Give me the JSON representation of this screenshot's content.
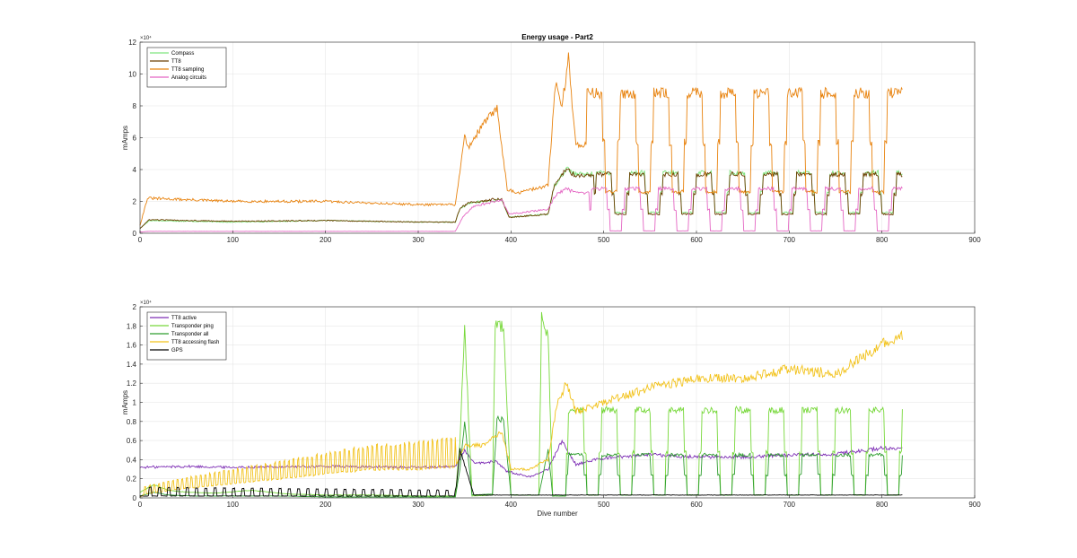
{
  "chart_data": [
    {
      "type": "line",
      "title": "Energy usage - Part2",
      "xlabel": "",
      "ylabel": "mAmps",
      "exponent_label": "×10⁴",
      "xlim": [
        0,
        900
      ],
      "ylim": [
        0,
        120000
      ],
      "xticks": [
        0,
        100,
        200,
        300,
        400,
        500,
        600,
        700,
        800,
        900
      ],
      "yticks": [
        0,
        20000,
        40000,
        60000,
        80000,
        100000,
        120000
      ],
      "ytick_labels": [
        "0",
        "2",
        "4",
        "6",
        "8",
        "10",
        "12"
      ],
      "grid": true,
      "legend_position": "top-left",
      "series": [
        {
          "name": "Compass",
          "color": "#7fe57f",
          "style": "pulse",
          "x": [
            0,
            10,
            100,
            200,
            300,
            340,
            345,
            355,
            390,
            398,
            440,
            447,
            460,
            470,
            822
          ],
          "y": [
            3000,
            8000,
            7000,
            8000,
            7000,
            7000,
            15000,
            19000,
            21000,
            10000,
            12000,
            30000,
            41000,
            37000,
            40000
          ],
          "cycle_start": 490,
          "period": 36,
          "high": 38000,
          "low": 13000,
          "end": 822
        },
        {
          "name": "TT8",
          "color": "#6b3d00",
          "style": "pulse",
          "x": [
            0,
            10,
            100,
            200,
            300,
            340,
            345,
            355,
            390,
            398,
            440,
            447,
            460,
            470,
            822
          ],
          "y": [
            3000,
            8500,
            7500,
            8000,
            7000,
            7000,
            16000,
            19000,
            22000,
            10000,
            12000,
            31000,
            40000,
            36000,
            39000
          ],
          "cycle_start": 490,
          "period": 36,
          "high": 37000,
          "low": 12000,
          "end": 822
        },
        {
          "name": "TT8 sampling",
          "color": "#e8830f",
          "style": "pulse",
          "x": [
            0,
            8,
            100,
            200,
            300,
            340,
            350,
            355,
            372,
            385,
            396,
            405,
            440,
            448,
            455,
            462,
            470,
            822
          ],
          "y": [
            5000,
            22000,
            20000,
            20000,
            18000,
            18000,
            60000,
            55000,
            70000,
            78000,
            28000,
            25000,
            30000,
            95000,
            80000,
            110000,
            55000,
            100000
          ],
          "cycle_start": 480,
          "period": 36,
          "high": 88000,
          "low": 26000,
          "end": 822
        },
        {
          "name": "Analog circuits",
          "color": "#e466c3",
          "style": "pulse",
          "x": [
            0,
            10,
            340,
            348,
            360,
            390,
            398,
            440,
            448,
            460,
            470,
            822
          ],
          "y": [
            800,
            1200,
            1200,
            10000,
            17000,
            21000,
            12000,
            15000,
            24000,
            28000,
            25000,
            28000
          ],
          "cycle_start": 485,
          "period": 36,
          "high": 28000,
          "low": 1500,
          "end": 822
        }
      ]
    },
    {
      "type": "line",
      "title": "",
      "xlabel": "Dive number",
      "ylabel": "mAmps",
      "exponent_label": "×10⁴",
      "xlim": [
        0,
        900
      ],
      "ylim": [
        0,
        20000
      ],
      "xticks": [
        0,
        100,
        200,
        300,
        400,
        500,
        600,
        700,
        800,
        900
      ],
      "yticks": [
        0,
        2000,
        4000,
        6000,
        8000,
        10000,
        12000,
        14000,
        16000,
        18000,
        20000
      ],
      "ytick_labels": [
        "0",
        "0.2",
        "0.4",
        "0.6",
        "0.8",
        "1",
        "1.2",
        "1.4",
        "1.6",
        "1.8",
        "2"
      ],
      "grid": true,
      "legend_position": "top-left",
      "series": [
        {
          "name": "TT8 active",
          "color": "#7e2fb5",
          "x": [
            0,
            50,
            100,
            200,
            300,
            340,
            350,
            360,
            385,
            395,
            420,
            440,
            455,
            470,
            500,
            550,
            600,
            650,
            700,
            750,
            800,
            822
          ],
          "y": [
            3200,
            3300,
            3200,
            3300,
            3200,
            3300,
            5000,
            3600,
            3800,
            2800,
            2200,
            3000,
            6000,
            3500,
            4200,
            4500,
            4300,
            4300,
            4500,
            4600,
            5200,
            5100
          ]
        },
        {
          "name": "Transponder ping",
          "color": "#77d83a",
          "x": [
            0,
            15,
            30,
            50,
            80,
            120,
            160,
            200,
            250,
            300,
            340,
            345,
            350,
            358,
            380,
            383,
            392,
            400,
            430,
            433,
            440,
            445
          ],
          "y": [
            600,
            1400,
            800,
            600,
            500,
            800,
            400,
            300,
            300,
            200,
            200,
            6000,
            18000,
            200,
            300,
            18000,
            18000,
            300,
            300,
            19000,
            17000,
            200
          ],
          "cycle_start": 460,
          "period": 36,
          "high": 9200,
          "low": 300,
          "end": 822
        },
        {
          "name": "Transponder all",
          "color": "#2f9e2f",
          "x": [
            0,
            15,
            30,
            60,
            100,
            150,
            200,
            300,
            340,
            345,
            350,
            358,
            380,
            385,
            392,
            400,
            430,
            440,
            445
          ],
          "y": [
            200,
            600,
            300,
            200,
            200,
            200,
            100,
            100,
            100,
            3000,
            8000,
            300,
            400,
            8500,
            8000,
            300,
            300,
            5000,
            200
          ],
          "cycle_start": 460,
          "period": 36,
          "high": 4500,
          "low": 300,
          "end": 822
        },
        {
          "name": "TT8 accessing flash",
          "color": "#f2c21b",
          "x": [
            0,
            5,
            50,
            100,
            150,
            200,
            250,
            300,
            340,
            350,
            370,
            390,
            400,
            420,
            440,
            450,
            460,
            470,
            500,
            550,
            600,
            650,
            700,
            750,
            800,
            822
          ],
          "y": [
            100,
            400,
            1000,
            1500,
            2000,
            2500,
            3000,
            3000,
            3300,
            5500,
            5500,
            7000,
            3000,
            3000,
            4000,
            10000,
            12000,
            9000,
            10000,
            11500,
            12500,
            12500,
            13500,
            13000,
            16000,
            17000
          ],
          "osc": {
            "start": 5,
            "end": 340,
            "period": 5,
            "amp_start": 800,
            "amp_end": 3000
          }
        },
        {
          "name": "GPS",
          "color": "#000000",
          "x": [
            0,
            340,
            345,
            360,
            400,
            822
          ],
          "y": [
            200,
            200,
            5000,
            300,
            300,
            300
          ],
          "osc": {
            "start": 5,
            "end": 340,
            "period": 10,
            "amp_start": 900,
            "amp_end": 600
          }
        }
      ]
    }
  ]
}
